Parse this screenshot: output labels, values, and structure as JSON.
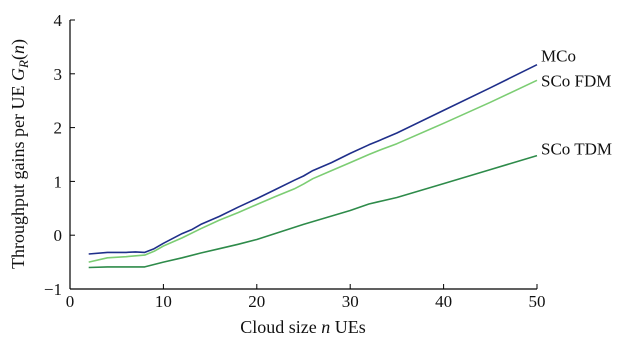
{
  "chart_data": {
    "type": "line",
    "title": "",
    "xlabel": "Cloud size n UEs",
    "ylabel": "Throughput gains per UE G_R(n)",
    "xlabel_parts": [
      "Cloud size ",
      "n",
      " UEs"
    ],
    "ylabel_parts": [
      "Throughput gains per UE ",
      "G",
      "R",
      "(",
      "n",
      ")"
    ],
    "xlim": [
      0,
      50
    ],
    "ylim": [
      -1,
      4
    ],
    "xticks": [
      0,
      10,
      20,
      30,
      40,
      50
    ],
    "yticks": [
      -1,
      0,
      1,
      2,
      3,
      4
    ],
    "xtick_labels": [
      "0",
      "10",
      "20",
      "30",
      "40",
      "50"
    ],
    "ytick_labels": [
      "−1",
      "0",
      "1",
      "2",
      "3",
      "4"
    ],
    "grid": false,
    "legend": "inline labels at right end of lines",
    "series": [
      {
        "name": "MCo",
        "color": "#1f2f8a",
        "x": [
          2,
          4,
          6,
          7,
          8,
          9,
          10,
          12,
          13,
          14,
          16,
          18,
          20,
          22,
          24,
          25,
          26,
          28,
          30,
          32,
          33,
          35,
          40,
          45,
          50
        ],
        "y": [
          -0.35,
          -0.32,
          -0.32,
          -0.31,
          -0.32,
          -0.25,
          -0.15,
          0.03,
          0.1,
          0.2,
          0.35,
          0.52,
          0.68,
          0.85,
          1.02,
          1.1,
          1.2,
          1.35,
          1.52,
          1.68,
          1.75,
          1.9,
          2.32,
          2.74,
          3.17
        ]
      },
      {
        "name": "SCo FDM",
        "color": "#7ccd73",
        "x": [
          2,
          4,
          6,
          8,
          9,
          10,
          12,
          14,
          16,
          18,
          20,
          22,
          24,
          25,
          26,
          28,
          30,
          32,
          33,
          35,
          40,
          45,
          50
        ],
        "y": [
          -0.5,
          -0.42,
          -0.4,
          -0.37,
          -0.3,
          -0.2,
          -0.05,
          0.12,
          0.28,
          0.42,
          0.57,
          0.72,
          0.86,
          0.95,
          1.05,
          1.2,
          1.35,
          1.5,
          1.57,
          1.7,
          2.08,
          2.47,
          2.88
        ]
      },
      {
        "name": "SCo TDM",
        "color": "#2e8b4a",
        "x": [
          2,
          4,
          6,
          8,
          10,
          12,
          14,
          16,
          18,
          20,
          25,
          30,
          32,
          33,
          35,
          40,
          45,
          50
        ],
        "y": [
          -0.6,
          -0.59,
          -0.59,
          -0.59,
          -0.5,
          -0.42,
          -0.33,
          -0.25,
          -0.17,
          -0.08,
          0.2,
          0.46,
          0.58,
          0.62,
          0.7,
          0.96,
          1.22,
          1.48
        ]
      }
    ]
  }
}
